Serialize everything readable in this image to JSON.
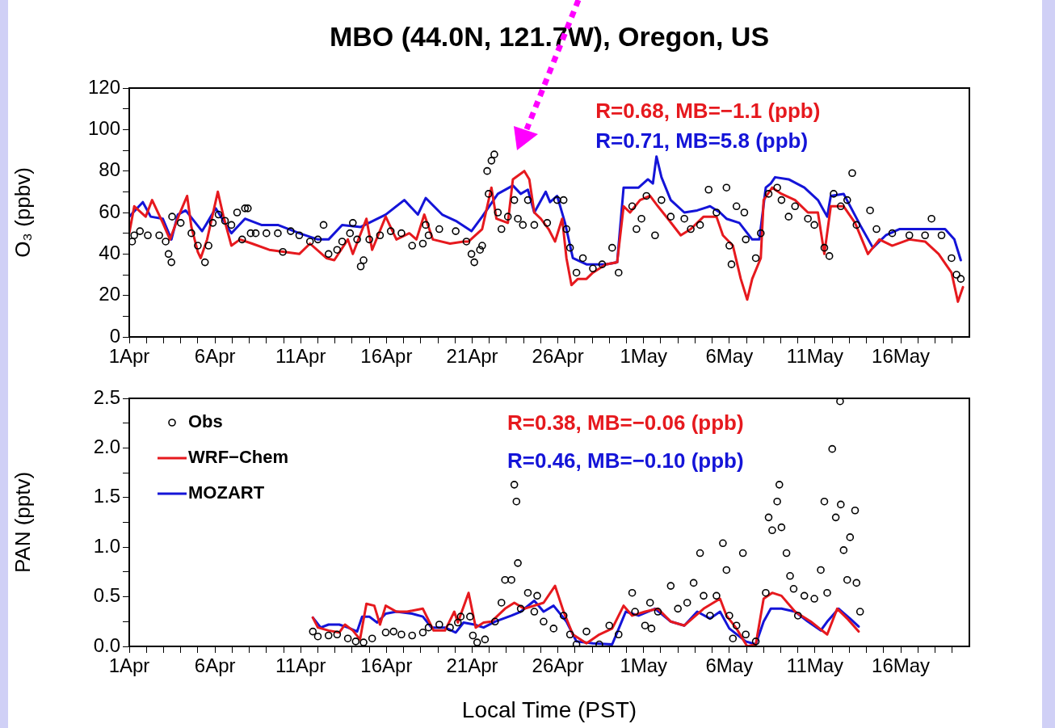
{
  "chart_data": [
    {
      "type": "line",
      "title": "MBO (44.0N, 121.7W), Oregon, US",
      "ylabel": "O₃ (ppbv)",
      "legend": false,
      "xlim": [
        "--04-01",
        "--05-20"
      ],
      "ylim": [
        0,
        120
      ],
      "xticks": [
        {
          "value": "--04-01",
          "label": "1Apr"
        },
        {
          "value": "--04-02",
          "label": null
        },
        {
          "value": "--04-03",
          "label": null
        },
        {
          "value": "--04-04",
          "label": null
        },
        {
          "value": "--04-05",
          "label": null
        },
        {
          "value": "--04-06",
          "label": "6Apr"
        },
        {
          "value": "--04-07",
          "label": null
        },
        {
          "value": "--04-08",
          "label": null
        },
        {
          "value": "--04-09",
          "label": null
        },
        {
          "value": "--04-10",
          "label": null
        },
        {
          "value": "--04-11",
          "label": "11Apr"
        },
        {
          "value": "--04-12",
          "label": null
        },
        {
          "value": "--04-13",
          "label": null
        },
        {
          "value": "--04-14",
          "label": null
        },
        {
          "value": "--04-15",
          "label": null
        },
        {
          "value": "--04-16",
          "label": "16Apr"
        },
        {
          "value": "--04-17",
          "label": null
        },
        {
          "value": "--04-18",
          "label": null
        },
        {
          "value": "--04-19",
          "label": null
        },
        {
          "value": "--04-20",
          "label": null
        },
        {
          "value": "--04-21",
          "label": "21Apr"
        },
        {
          "value": "--04-22",
          "label": null
        },
        {
          "value": "--04-23",
          "label": null
        },
        {
          "value": "--04-24",
          "label": null
        },
        {
          "value": "--04-25",
          "label": null
        },
        {
          "value": "--04-26",
          "label": "26Apr"
        },
        {
          "value": "--04-27",
          "label": null
        },
        {
          "value": "--04-28",
          "label": null
        },
        {
          "value": "--04-29",
          "label": null
        },
        {
          "value": "--04-30",
          "label": null
        },
        {
          "value": "--05-01",
          "label": "1May"
        },
        {
          "value": "--05-02",
          "label": null
        },
        {
          "value": "--05-03",
          "label": null
        },
        {
          "value": "--05-04",
          "label": null
        },
        {
          "value": "--05-05",
          "label": null
        },
        {
          "value": "--05-06",
          "label": "6May"
        },
        {
          "value": "--05-07",
          "label": null
        },
        {
          "value": "--05-08",
          "label": null
        },
        {
          "value": "--05-09",
          "label": null
        },
        {
          "value": "--05-10",
          "label": null
        },
        {
          "value": "--05-11",
          "label": "11May"
        },
        {
          "value": "--05-12",
          "label": null
        },
        {
          "value": "--05-13",
          "label": null
        },
        {
          "value": "--05-14",
          "label": null
        },
        {
          "value": "--05-15",
          "label": null
        },
        {
          "value": "--05-16",
          "label": "16May"
        },
        {
          "value": "--05-17",
          "label": null
        },
        {
          "value": "--05-18",
          "label": null
        },
        {
          "value": "--05-19",
          "label": null
        }
      ],
      "yticks": [
        0,
        {
          "value": 10,
          "label": null
        },
        20,
        {
          "value": 30,
          "label": null
        },
        40,
        {
          "value": 50,
          "label": null
        },
        60,
        {
          "value": 70,
          "label": null
        },
        80,
        {
          "value": 90,
          "label": null
        },
        100,
        {
          "value": 110,
          "label": null
        },
        120
      ],
      "annotations": [
        "R=0.68, MB=−1.1 (ppb)",
        "R=0.71, MB=5.8 (ppb)"
      ],
      "series": [
        {
          "type": "scatter",
          "marker": "circle",
          "color": "#000000",
          "x": [
            "--04-01T04:00",
            "--04-01T07:00",
            "--04-01T15:00",
            "--04-02T02:00",
            "--04-02T18:00",
            "--04-03T03:00",
            "--04-03T07:00",
            "--04-03T11:00",
            "--04-03T12:00",
            "--04-04T00:00",
            "--04-04T15:00",
            "--04-05T00:00",
            "--04-05T10:00",
            "--04-05T15:00",
            "--04-05T21:00",
            "--04-06T05:00",
            "--04-06T14:00",
            "--04-06T23:00",
            "--04-07T07:00",
            "--04-07T14:00",
            "--04-07T18:00",
            "--04-07T22:00",
            "--04-08T02:00",
            "--04-08T09:00",
            "--04-09T00:00",
            "--04-09T16:00",
            "--04-09T23:00",
            "--04-10T10:00",
            "--04-10T22:00",
            "--04-11T13:00",
            "--04-12T00:00",
            "--04-12T08:00",
            "--04-12T15:00",
            "--04-13T03:00",
            "--04-13T10:00",
            "--04-13T21:00",
            "--04-14T01:00",
            "--04-14T07:00",
            "--04-14T12:00",
            "--04-14T16:00",
            "--04-15T00:00",
            "--04-15T15:00",
            "--04-16T06:00",
            "--04-16T21:00",
            "--04-17T12:00",
            "--04-18T03:00",
            "--04-18T07:00",
            "--04-18T11:00",
            "--04-19T02:00",
            "--04-20T01:00",
            "--04-20T16:00",
            "--04-20T23:00",
            "--04-21T03:00",
            "--04-21T11:00",
            "--04-21T14:00",
            "--04-21T21:00",
            "--04-21T23:00",
            "--04-22T03:00",
            "--04-22T07:00",
            "--04-22T12:00",
            "--04-22T17:00",
            "--04-23T02:00",
            "--04-23T11:00",
            "--04-23T16:00",
            "--04-23T23:00",
            "--04-24T06:00",
            "--04-24T15:00",
            "--04-25T09:00",
            "--04-25T23:00",
            "--04-26T08:00",
            "--04-26T12:00",
            "--04-26T17:00",
            "--04-27T02:00",
            "--04-27T11:00",
            "--04-28T01:00",
            "--04-28T14:00",
            "--04-29T04:00",
            "--04-29T13:00",
            "--04-30T08:00",
            "--04-30T14:00",
            "--04-30T21:00",
            "--05-01T04:00",
            "--05-01T16:00",
            "--05-02T01:00",
            "--05-02T14:00",
            "--05-03T09:00",
            "--05-03T18:00",
            "--05-04T07:00",
            "--05-04T19:00",
            "--05-05T06:00",
            "--05-05T20:00",
            "--05-06T00:00",
            "--05-06T03:00",
            "--05-06T10:00",
            "--05-06T21:00",
            "--05-06T23:00",
            "--05-07T13:00",
            "--05-07T20:00",
            "--05-08T07:00",
            "--05-08T19:00",
            "--05-09T01:00",
            "--05-09T11:00",
            "--05-09T20:00",
            "--05-10T14:00",
            "--05-10T23:00",
            "--05-11T13:00",
            "--05-11T20:00",
            "--05-12T02:00",
            "--05-12T12:00",
            "--05-12T21:00",
            "--05-13T04:00",
            "--05-13T10:00",
            "--05-14T05:00",
            "--05-14T14:00",
            "--05-15T12:00",
            "--05-16T12:00",
            "--05-17T10:00",
            "--05-17T19:00",
            "--05-18T09:00",
            "--05-18T23:00",
            "--05-19T06:00",
            "--05-19T12:00"
          ],
          "values": [
            46,
            49,
            51,
            49,
            49,
            46,
            40,
            36,
            58,
            55,
            50,
            44,
            36,
            44,
            55,
            59,
            56,
            54,
            60,
            47,
            62,
            62,
            50,
            50,
            50,
            50,
            41,
            51,
            49,
            46,
            47,
            54,
            40,
            42,
            46,
            50,
            55,
            47,
            34,
            37,
            47,
            49,
            51,
            50,
            44,
            45,
            54,
            49,
            52,
            51,
            46,
            40,
            36,
            42,
            44,
            80,
            69,
            85,
            88,
            60,
            52,
            58,
            66,
            57,
            54,
            66,
            54,
            55,
            66,
            66,
            52,
            43,
            31,
            38,
            33,
            35,
            43,
            31,
            63,
            52,
            57,
            68,
            49,
            66,
            58,
            57,
            52,
            54,
            71,
            60,
            72,
            44,
            35,
            63,
            60,
            47,
            38,
            50,
            69,
            72,
            66,
            58,
            63,
            57,
            54,
            43,
            39,
            69,
            63,
            66,
            79,
            54,
            61,
            52,
            50,
            49,
            49,
            57,
            49,
            38,
            30,
            28
          ]
        },
        {
          "color": "#e6191e",
          "x": [
            "--04-01T00:00",
            "--04-01T07:00",
            "--04-01T23:00",
            "--04-02T08:00",
            "--04-02T23:00",
            "--04-03T09:00",
            "--04-03T22:00",
            "--04-04T09:00",
            "--04-04T15:00",
            "--04-05T00:00",
            "--04-05T04:00",
            "--04-05T13:00",
            "--04-06T04:00",
            "--04-06T12:00",
            "--04-06T23:00",
            "--04-07T11:00",
            "--04-08T04:00",
            "--04-09T04:00",
            "--04-10T22:00",
            "--04-11T13:00",
            "--04-12T12:00",
            "--04-12T23:00",
            "--04-13T18:00",
            "--04-14T01:00",
            "--04-14T20:00",
            "--04-15T04:00",
            "--04-15T23:00",
            "--04-16T14:00",
            "--04-17T08:00",
            "--04-17T18:00",
            "--04-18T05:00",
            "--04-18T17:00",
            "--04-19T17:00",
            "--04-20T12:00",
            "--04-20T19:00",
            "--04-21T14:00",
            "--04-22T03:00",
            "--04-22T10:00",
            "--04-23T02:00",
            "--04-23T09:00",
            "--04-24T01:00",
            "--04-24T08:00",
            "--04-24T15:00",
            "--04-25T00:00",
            "--04-25T11:00",
            "--04-25T20:00",
            "--04-26T06:00",
            "--04-26T12:00",
            "--04-26T19:00",
            "--04-27T04:00",
            "--04-27T16:00",
            "--04-28T01:00",
            "--04-28T19:00",
            "--04-29T11:00",
            "--04-29T20:00",
            "--04-30T05:00",
            "--04-30T19:00",
            "--05-01T09:00",
            "--05-01T20:00",
            "--05-02T10:00",
            "--05-03T04:00",
            "--05-03T18:00",
            "--05-04T12:00",
            "--05-05T06:00",
            "--05-05T15:00",
            "--05-06T05:00",
            "--05-06T16:00",
            "--05-07T01:00",
            "--05-07T08:00",
            "--05-07T20:00",
            "--05-08T00:00",
            "--05-08T12:00",
            "--05-09T01:00",
            "--05-09T20:00",
            "--05-10T14:00",
            "--05-11T04:00",
            "--05-11T13:00",
            "--05-11T22:00",
            "--05-12T16:00",
            "--05-13T08:00",
            "--05-14T02:00",
            "--05-14T18:00",
            "--05-15T12:00",
            "--05-16T12:00",
            "--05-17T10:00",
            "--05-18T05:00",
            "--05-18T23:00",
            "--05-19T08:00",
            "--05-19T15:00"
          ],
          "values": [
            50,
            63,
            58,
            66,
            55,
            47,
            59,
            68,
            53,
            41,
            38,
            47,
            70,
            58,
            44,
            47,
            45,
            42,
            40,
            45,
            38,
            37,
            47,
            40,
            57,
            42,
            58,
            47,
            50,
            47,
            59,
            47,
            45,
            46,
            46,
            52,
            72,
            57,
            55,
            76,
            80,
            76,
            60,
            57,
            52,
            46,
            57,
            38,
            25,
            28,
            28,
            31,
            35,
            36,
            63,
            60,
            66,
            68,
            63,
            57,
            49,
            52,
            58,
            58,
            49,
            44,
            28,
            18,
            28,
            38,
            66,
            72,
            69,
            66,
            60,
            60,
            40,
            63,
            63,
            55,
            40,
            47,
            44,
            47,
            46,
            40,
            31,
            17,
            24
          ]
        },
        {
          "color": "#1414d8",
          "x": [
            "--04-01T00:00",
            "--04-01T19:00",
            "--04-02T06:00",
            "--04-02T23:00",
            "--04-03T11:00",
            "--04-03T20:00",
            "--04-04T07:00",
            "--04-05T06:00",
            "--04-06T01:00",
            "--04-06T23:00",
            "--04-07T18:00",
            "--04-08T17:00",
            "--04-09T16:00",
            "--04-10T22:00",
            "--04-12T00:00",
            "--04-12T15:00",
            "--04-13T10:00",
            "--04-14T12:00",
            "--04-15T23:00",
            "--04-17T01:00",
            "--04-17T20:00",
            "--04-18T07:00",
            "--04-19T06:00",
            "--04-20T01:00",
            "--04-20T23:00",
            "--04-21T14:00",
            "--04-22T12:00",
            "--04-23T09:00",
            "--04-23T20:00",
            "--04-24T06:00",
            "--04-24T15:00",
            "--04-25T07:00",
            "--04-25T13:00",
            "--04-25T23:00",
            "--04-26T10:00",
            "--04-26T21:00",
            "--04-27T16:00",
            "--04-28T19:00",
            "--04-29T11:00",
            "--04-29T20:00",
            "--04-30T17:00",
            "--05-01T06:00",
            "--05-01T13:00",
            "--05-01T18:00",
            "--05-02T01:00",
            "--05-02T14:00",
            "--05-03T09:00",
            "--05-04T03:00",
            "--05-04T21:00",
            "--05-05T11:00",
            "--05-05T20:00",
            "--05-06T14:00",
            "--05-07T08:00",
            "--05-07T18:00",
            "--05-08T03:00",
            "--05-08T10:00",
            "--05-08T16:00",
            "--05-09T11:00",
            "--05-10T09:00",
            "--05-11T04:00",
            "--05-11T17:00",
            "--05-11T22:00",
            "--05-12T16:00",
            "--05-13T15:00",
            "--05-14T09:00",
            "--05-15T03:00",
            "--05-15T22:00",
            "--05-17T10:00",
            "--05-18T14:00",
            "--05-19T03:00",
            "--05-19T12:00"
          ],
          "values": [
            58,
            65,
            58,
            57,
            47,
            59,
            61,
            51,
            62,
            50,
            57,
            54,
            54,
            50,
            47,
            47,
            54,
            53,
            59,
            66,
            59,
            67,
            59,
            56,
            51,
            58,
            69,
            73,
            69,
            71,
            60,
            70,
            65,
            68,
            55,
            38,
            35,
            35,
            36,
            72,
            72,
            76,
            74,
            87,
            77,
            66,
            60,
            61,
            63,
            60,
            57,
            55,
            47,
            47,
            72,
            74,
            77,
            76,
            72,
            66,
            58,
            68,
            69,
            54,
            43,
            49,
            52,
            52,
            52,
            47,
            37
          ]
        }
      ]
    },
    {
      "type": "line",
      "xlabel": "Local Time (PST)",
      "ylabel": "PAN (pptv)",
      "legend": "top left",
      "xlim": [
        "--04-01",
        "--05-20"
      ],
      "ylim": [
        0,
        2.5
      ],
      "xticks": [
        {
          "value": "--04-01",
          "label": "1Apr"
        },
        {
          "value": "--04-02",
          "label": null
        },
        {
          "value": "--04-03",
          "label": null
        },
        {
          "value": "--04-04",
          "label": null
        },
        {
          "value": "--04-05",
          "label": null
        },
        {
          "value": "--04-06",
          "label": "6Apr"
        },
        {
          "value": "--04-07",
          "label": null
        },
        {
          "value": "--04-08",
          "label": null
        },
        {
          "value": "--04-09",
          "label": null
        },
        {
          "value": "--04-10",
          "label": null
        },
        {
          "value": "--04-11",
          "label": "11Apr"
        },
        {
          "value": "--04-12",
          "label": null
        },
        {
          "value": "--04-13",
          "label": null
        },
        {
          "value": "--04-14",
          "label": null
        },
        {
          "value": "--04-15",
          "label": null
        },
        {
          "value": "--04-16",
          "label": "16Apr"
        },
        {
          "value": "--04-17",
          "label": null
        },
        {
          "value": "--04-18",
          "label": null
        },
        {
          "value": "--04-19",
          "label": null
        },
        {
          "value": "--04-20",
          "label": null
        },
        {
          "value": "--04-21",
          "label": "21Apr"
        },
        {
          "value": "--04-22",
          "label": null
        },
        {
          "value": "--04-23",
          "label": null
        },
        {
          "value": "--04-24",
          "label": null
        },
        {
          "value": "--04-25",
          "label": null
        },
        {
          "value": "--04-26",
          "label": "26Apr"
        },
        {
          "value": "--04-27",
          "label": null
        },
        {
          "value": "--04-28",
          "label": null
        },
        {
          "value": "--04-29",
          "label": null
        },
        {
          "value": "--04-30",
          "label": null
        },
        {
          "value": "--05-01",
          "label": "1May"
        },
        {
          "value": "--05-02",
          "label": null
        },
        {
          "value": "--05-03",
          "label": null
        },
        {
          "value": "--05-04",
          "label": null
        },
        {
          "value": "--05-05",
          "label": null
        },
        {
          "value": "--05-06",
          "label": "6May"
        },
        {
          "value": "--05-07",
          "label": null
        },
        {
          "value": "--05-08",
          "label": null
        },
        {
          "value": "--05-09",
          "label": null
        },
        {
          "value": "--05-10",
          "label": null
        },
        {
          "value": "--05-11",
          "label": "11May"
        },
        {
          "value": "--05-12",
          "label": null
        },
        {
          "value": "--05-13",
          "label": null
        },
        {
          "value": "--05-14",
          "label": null
        },
        {
          "value": "--05-15",
          "label": null
        },
        {
          "value": "--05-16",
          "label": "16May"
        },
        {
          "value": "--05-17",
          "label": null
        },
        {
          "value": "--05-18",
          "label": null
        },
        {
          "value": "--05-19",
          "label": null
        }
      ],
      "yticks": [
        {
          "value": 0,
          "label": "0.0"
        },
        {
          "value": 0.25,
          "label": null
        },
        {
          "value": 0.5,
          "label": "0.5"
        },
        {
          "value": 0.75,
          "label": null
        },
        {
          "value": 1,
          "label": "1.0"
        },
        {
          "value": 1.25,
          "label": null
        },
        {
          "value": 1.5,
          "label": "1.5"
        },
        {
          "value": 1.75,
          "label": null
        },
        {
          "value": 2,
          "label": "2.0"
        },
        {
          "value": 2.25,
          "label": null
        },
        {
          "value": 2.5,
          "label": "2.5"
        }
      ],
      "annotations": [
        "R=0.38, MB=−0.06 (ppb)",
        "R=0.46, MB=−0.10 (ppb)"
      ],
      "series": [
        {
          "name": "Obs",
          "type": "scatter",
          "marker": "circle",
          "color": "#000000",
          "x": [
            "--04-11T17:00",
            "--04-12T00:00",
            "--04-12T15:00",
            "--04-13T03:00",
            "--04-13T18:00",
            "--04-14T05:00",
            "--04-14T16:00",
            "--04-15T04:00",
            "--04-15T23:00",
            "--04-16T10:00",
            "--04-16T21:00",
            "--04-17T12:00",
            "--04-18T03:00",
            "--04-18T11:00",
            "--04-19T02:00",
            "--04-19T17:00",
            "--04-20T04:00",
            "--04-20T08:00",
            "--04-20T21:00",
            "--04-21T01:00",
            "--04-21T07:00",
            "--04-21T18:00",
            "--04-22T08:00",
            "--04-22T17:00",
            "--04-22T22:00",
            "--04-23T07:00",
            "--04-23T11:00",
            "--04-23T14:00",
            "--04-23T16:00",
            "--04-23T20:00",
            "--04-24T06:00",
            "--04-24T15:00",
            "--04-24T19:00",
            "--04-25T04:00",
            "--04-25T18:00",
            "--04-26T08:00",
            "--04-26T17:00",
            "--04-27T02:00",
            "--04-27T16:00",
            "--04-28T10:00",
            "--04-29T00:00",
            "--04-29T13:00",
            "--04-30T08:00",
            "--04-30T12:00",
            "--05-01T02:00",
            "--05-01T09:00",
            "--05-01T11:00",
            "--05-01T20:00",
            "--05-02T14:00",
            "--05-03T00:00",
            "--05-03T13:00",
            "--05-03T22:00",
            "--05-04T07:00",
            "--05-04T12:00",
            "--05-04T21:00",
            "--05-05T06:00",
            "--05-05T15:00",
            "--05-05T20:00",
            "--05-06T00:00",
            "--05-06T05:00",
            "--05-06T10:00",
            "--05-06T19:00",
            "--05-06T23:00",
            "--05-07T13:00",
            "--05-08T03:00",
            "--05-08T07:00",
            "--05-08T12:00",
            "--05-08T19:00",
            "--05-08T22:00",
            "--05-09T01:00",
            "--05-09T08:00",
            "--05-09T13:00",
            "--05-09T18:00",
            "--05-10T00:00",
            "--05-10T09:00",
            "--05-10T23:00",
            "--05-11T08:00",
            "--05-11T13:00",
            "--05-11T17:00",
            "--05-12T00:00",
            "--05-12T05:00",
            "--05-12T11:00",
            "--05-12T12:00",
            "--05-12T16:00",
            "--05-12T21:00",
            "--05-13T01:00",
            "--05-13T08:00",
            "--05-13T10:00",
            "--05-13T15:00"
          ],
          "values": [
            0.15,
            0.1,
            0.11,
            0.12,
            0.08,
            0.05,
            0.04,
            0.08,
            0.14,
            0.15,
            0.12,
            0.11,
            0.14,
            0.19,
            0.22,
            0.19,
            0.24,
            0.3,
            0.3,
            0.11,
            0.04,
            0.07,
            0.25,
            0.44,
            0.67,
            0.67,
            1.63,
            1.46,
            0.84,
            0.38,
            0.54,
            0.35,
            0.51,
            0.25,
            0.18,
            0.31,
            0.12,
            0.02,
            0.15,
            0.02,
            0.21,
            0.12,
            0.54,
            0.35,
            0.21,
            0.44,
            0.18,
            0.35,
            0.61,
            0.38,
            0.44,
            0.64,
            0.94,
            0.51,
            0.31,
            0.51,
            1.04,
            0.77,
            0.31,
            0.08,
            0.21,
            0.94,
            0.12,
            0.05,
            0.54,
            1.3,
            1.17,
            1.46,
            1.63,
            1.2,
            0.94,
            0.71,
            0.58,
            0.31,
            0.51,
            0.48,
            0.77,
            1.46,
            0.54,
            1.99,
            1.3,
            2.47,
            1.43,
            0.97,
            0.67,
            1.1,
            1.37,
            0.64,
            0.35
          ]
        },
        {
          "name": "WRF−Chem",
          "color": "#e6191e",
          "x": [
            "--04-11T17:00",
            "--04-12T00:00",
            "--04-12T15:00",
            "--04-13T06:00",
            "--04-13T14:00",
            "--04-14T01:00",
            "--04-14T11:00",
            "--04-14T20:00",
            "--04-15T07:00",
            "--04-15T15:00",
            "--04-15T23:00",
            "--04-16T14:00",
            "--04-17T05:00",
            "--04-18T03:00",
            "--04-18T18:00",
            "--04-19T10:00",
            "--04-19T23:00",
            "--04-20T04:00",
            "--04-20T19:00",
            "--04-21T05:00",
            "--04-21T16:00",
            "--04-22T03:00",
            "--04-22T22:00",
            "--04-23T11:00",
            "--04-24T01:00",
            "--04-25T04:00",
            "--04-25T20:00",
            "--04-26T08:00",
            "--04-26T21:00",
            "--04-27T16:00",
            "--04-28T10:00",
            "--04-29T04:00",
            "--04-29T20:00",
            "--04-30T08:00",
            "--05-01T02:00",
            "--05-01T20:00",
            "--05-02T14:00",
            "--05-03T09:00",
            "--05-04T12:00",
            "--05-05T11:00",
            "--05-05T20:00",
            "--05-06T10:00",
            "--05-07T01:00",
            "--05-07T13:00",
            "--05-08T00:00",
            "--05-08T12:00",
            "--05-09T01:00",
            "--05-09T20:00",
            "--05-10T18:00",
            "--05-11T17:00",
            "--05-12T07:00",
            "--05-12T21:00",
            "--05-13T13:00"
          ],
          "values": [
            0.29,
            0.19,
            0.16,
            0.14,
            0.22,
            0.16,
            0.07,
            0.43,
            0.41,
            0.22,
            0.41,
            0.35,
            0.35,
            0.38,
            0.16,
            0.16,
            0.35,
            0.24,
            0.54,
            0.19,
            0.24,
            0.25,
            0.38,
            0.44,
            0.38,
            0.44,
            0.61,
            0.35,
            0.12,
            0.03,
            0.12,
            0.18,
            0.41,
            0.31,
            0.35,
            0.38,
            0.25,
            0.21,
            0.38,
            0.48,
            0.31,
            0.18,
            0,
            0.02,
            0.48,
            0.54,
            0.51,
            0.35,
            0.25,
            0.12,
            0.38,
            0.28,
            0.15
          ]
        },
        {
          "name": "MOZART",
          "color": "#1414d8",
          "x": [
            "--04-11T17:00",
            "--04-12T04:00",
            "--04-12T15:00",
            "--04-13T06:00",
            "--04-13T18:00",
            "--04-14T07:00",
            "--04-14T14:00",
            "--04-15T00:00",
            "--04-15T11:00",
            "--04-15T23:00",
            "--04-16T14:00",
            "--04-17T12:00",
            "--04-18T03:00",
            "--04-18T15:00",
            "--04-19T10:00",
            "--04-20T01:00",
            "--04-20T12:00",
            "--04-21T03:00",
            "--04-21T16:00",
            "--04-22T08:00",
            "--04-23T07:00",
            "--04-23T20:00",
            "--04-24T15:00",
            "--04-25T04:00",
            "--04-25T18:00",
            "--04-26T12:00",
            "--04-27T02:00",
            "--04-28T01:00",
            "--04-29T04:00",
            "--04-29T23:00",
            "--04-30T17:00",
            "--05-01T16:00",
            "--05-02T14:00",
            "--05-03T09:00",
            "--05-04T03:00",
            "--05-04T21:00",
            "--05-05T11:00",
            "--05-06T00:00",
            "--05-06T23:00",
            "--05-07T13:00",
            "--05-08T00:00",
            "--05-08T10:00",
            "--05-09T01:00",
            "--05-09T20:00",
            "--05-10T14:00",
            "--05-11T08:00",
            "--05-11T17:00",
            "--05-12T09:00",
            "--05-13T01:00",
            "--05-13T13:00"
          ],
          "values": [
            0.29,
            0.19,
            0.22,
            0.22,
            0.19,
            0.15,
            0.3,
            0.3,
            0.24,
            0.33,
            0.35,
            0.33,
            0.3,
            0.19,
            0.19,
            0.14,
            0.24,
            0.22,
            0.19,
            0.25,
            0.31,
            0.35,
            0.46,
            0.35,
            0.41,
            0.25,
            0.05,
            0.03,
            0.02,
            0.35,
            0.31,
            0.38,
            0.25,
            0.21,
            0.35,
            0.28,
            0.35,
            0.18,
            0.05,
            0.02,
            0.25,
            0.38,
            0.38,
            0.35,
            0.25,
            0.16,
            0.25,
            0.38,
            0.28,
            0.2
          ]
        }
      ]
    }
  ]
}
